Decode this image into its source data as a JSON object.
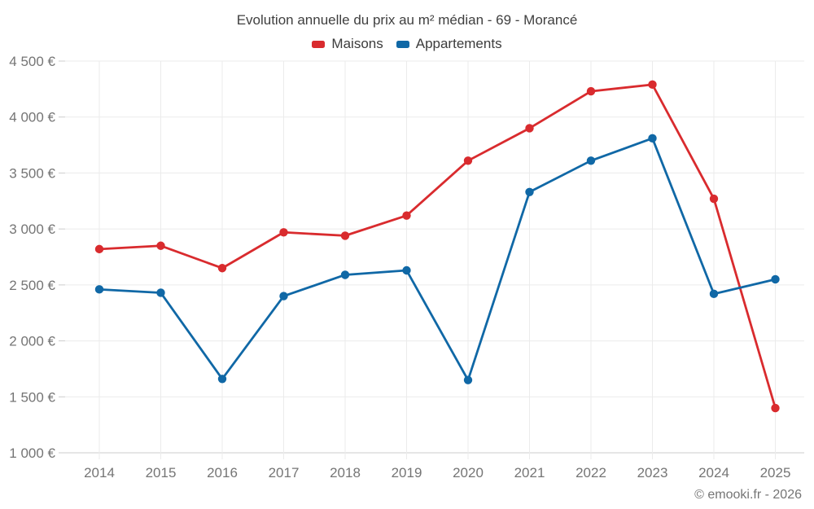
{
  "page": {
    "footer": "© emooki.fr - 2026"
  },
  "legend": [
    {
      "label": "Maisons",
      "color": "#d92b2e"
    },
    {
      "label": "Appartements",
      "color": "#1068a6"
    }
  ],
  "chart_data": {
    "type": "line",
    "title": "Evolution annuelle du prix au m² médian - 69 - Morancé",
    "categories": [
      "2014",
      "2015",
      "2016",
      "2017",
      "2018",
      "2019",
      "2020",
      "2021",
      "2022",
      "2023",
      "2024",
      "2025"
    ],
    "series": [
      {
        "name": "Maisons",
        "color": "#d92b2e",
        "values": [
          2820,
          2850,
          2650,
          2970,
          2940,
          3120,
          3610,
          3900,
          4230,
          4290,
          3270,
          1400
        ]
      },
      {
        "name": "Appartements",
        "color": "#1068a6",
        "values": [
          2460,
          2430,
          1660,
          2400,
          2590,
          2630,
          1650,
          3330,
          3610,
          3810,
          2420,
          2550
        ]
      }
    ],
    "xlabel": "",
    "ylabel": "",
    "ylim": [
      1000,
      4500
    ],
    "y_tick_step": 500,
    "y_tick_labels": [
      "1 000 €",
      "1 500 €",
      "2 000 €",
      "2 500 €",
      "3 000 €",
      "3 500 €",
      "4 000 €",
      "4 500 €"
    ],
    "grid": true,
    "legend_position": "top",
    "currency": "€"
  },
  "colors": {
    "grid": "#ebebeb",
    "axis": "#cccccc",
    "tick_label": "#757575",
    "title_text": "#3f3f3f"
  }
}
